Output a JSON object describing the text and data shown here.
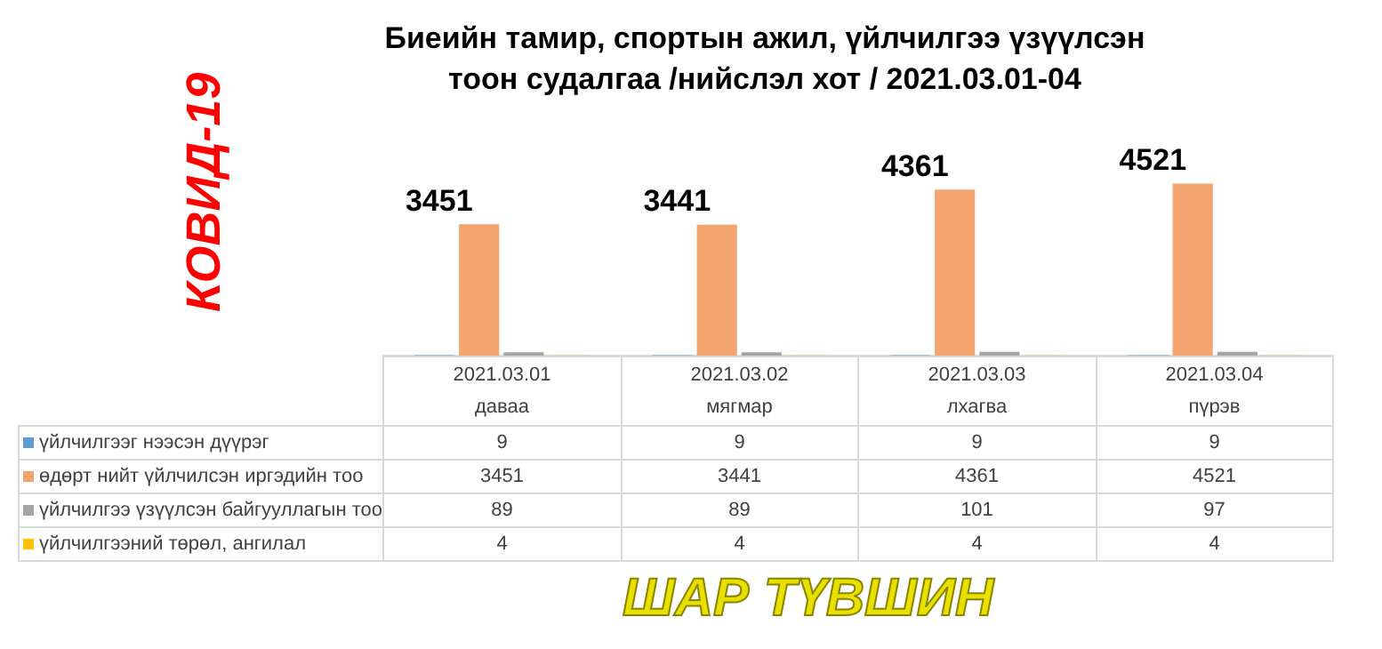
{
  "chart_data": {
    "type": "bar",
    "title": "Биеийн тамир, спортын ажил, үйлчилгээ үзүүлсэн тоон судалгаа /нийслэл хот / 2021.03.01-04",
    "categories": [
      "2021.03.01 даваа",
      "2021.03.02 мягмар",
      "2021.03.03 лхагва",
      "2021.03.04 пүрэв"
    ],
    "series": [
      {
        "name": "үйлчилгээг нээсэн дүүрэг",
        "color": "#5b9bd5",
        "values": [
          9,
          9,
          9,
          9
        ]
      },
      {
        "name": "өдөрт нийт үйлчилсэн иргэдийн тоо",
        "color": "#f4a46e",
        "values": [
          3451,
          3441,
          4361,
          4521
        ]
      },
      {
        "name": "үйлчилгээ үзүүлсэн байгууллагын тоо",
        "color": "#a5a5a5",
        "values": [
          89,
          89,
          101,
          97
        ]
      },
      {
        "name": "үйлчилгээний төрөл, ангилал",
        "color": "#ffc000",
        "values": [
          4,
          4,
          4,
          4
        ]
      }
    ],
    "data_labels": true,
    "legend": "left",
    "grid": false,
    "annotations": [
      "КОВИД-19",
      "ШАР ТҮВШИН",
      {
        "text": "3451",
        "x": "2021.03.01 даваа",
        "y": 3451
      },
      {
        "text": "3441",
        "x": "2021.03.02 мягмар",
        "y": 3441
      },
      {
        "text": "4361",
        "x": "2021.03.03 лхагва",
        "y": 4361
      },
      {
        "text": "4521",
        "x": "2021.03.04 пүрэв",
        "y": 4521
      }
    ]
  }
}
